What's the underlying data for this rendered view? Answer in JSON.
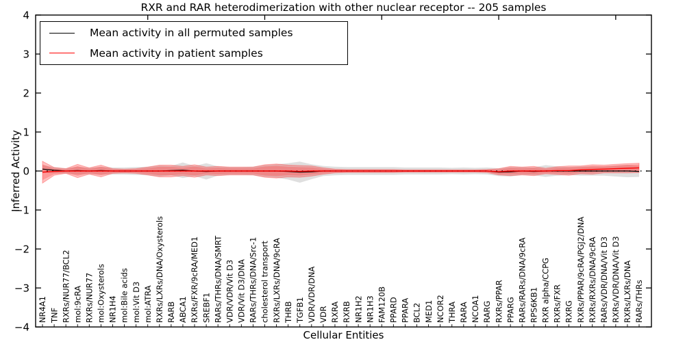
{
  "figure": {
    "title": "RXR and RAR heterodimerization with other nuclear receptor -- 205 samples",
    "xlabel": "Cellular Entities",
    "ylabel": "Inferred Activity"
  },
  "legend": {
    "items": [
      {
        "label": "Mean activity in all permuted samples",
        "color": "#000000"
      },
      {
        "label": "Mean activity in patient samples",
        "color": "#ff0000"
      }
    ]
  },
  "chart_data": {
    "type": "line",
    "title": "RXR and RAR heterodimerization with other nuclear receptor -- 205 samples",
    "xlabel": "Cellular Entities",
    "ylabel": "Inferred Activity",
    "ylim": [
      -4,
      4
    ],
    "ytick_labels": [
      "4",
      "3",
      "2",
      "1",
      "0",
      "−1",
      "−2",
      "−3",
      "−4"
    ],
    "ytick_values": [
      4,
      3,
      2,
      1,
      0,
      -1,
      -2,
      -3,
      -4
    ],
    "top_tick_indices": [
      9,
      19,
      29,
      39,
      49
    ],
    "grid": false,
    "legend_position": "upper left",
    "zero_line": true,
    "categories": [
      "NR4A1",
      "TNF",
      "RXRs/NUR77/BCL2",
      "mol:9cRA",
      "RXRs/NUR77",
      "mol:Oxysterols",
      "NR1H4",
      "mol:Bile acids",
      "mol:Vit D3",
      "mol:ATRA",
      "RXRs/LXRs/DNA/Oxysterols",
      "RARB",
      "ABCA1",
      "RXRs/FXR/9cRA/MED1",
      "SREBF1",
      "RARs/THRs/DNA/SMRT",
      "VDR/VDR/Vit D3",
      "VDR/Vit D3/DNA",
      "RARs/THRs/DNA/Src-1",
      "cholesterol transport",
      "RXRs/LXRs/DNA/9cRA",
      "THRB",
      "TGFB1",
      "VDR/VDR/DNA",
      "VDR",
      "RXRA",
      "RXRB",
      "NR1H2",
      "NR1H3",
      "FAM120B",
      "PPARD",
      "PPARA",
      "BCL2",
      "MED1",
      "NCOR2",
      "THRA",
      "RARA",
      "NCOA1",
      "RARG",
      "RXRs/PPAR",
      "PPARG",
      "RARs/RARs/DNA/9cRA",
      "RPS6KB1",
      "RXR alpha/CCPG",
      "RXRs/FXR",
      "RXRG",
      "RXRs/PPAR/9cRA/PGJ2/DNA",
      "RXRs/RXRs/DNA/9cRA",
      "RARs/VDR/DNA/Vit D3",
      "RXRs/VDR/DNA/Vit D3",
      "RXRs/LXRs/DNA",
      "RARs/THRs"
    ],
    "series": [
      {
        "name": "Mean activity in all permuted samples",
        "color": "#000000",
        "values": [
          0.05,
          0.02,
          0.0,
          0.01,
          0.0,
          0.01,
          0.0,
          0.0,
          0.0,
          0.0,
          0.0,
          0.01,
          0.02,
          0.0,
          -0.01,
          0.0,
          0.0,
          0.0,
          0.0,
          0.0,
          0.0,
          -0.01,
          -0.03,
          -0.02,
          0.0,
          0.0,
          0.0,
          0.0,
          0.0,
          0.0,
          0.0,
          0.0,
          0.0,
          0.0,
          0.0,
          0.0,
          0.0,
          0.0,
          0.0,
          -0.03,
          -0.02,
          0.0,
          -0.01,
          0.0,
          0.0,
          0.0,
          0.0,
          0.0,
          0.0,
          0.0,
          0.0,
          -0.01
        ],
        "std": [
          0.1,
          0.08,
          0.07,
          0.1,
          0.08,
          0.1,
          0.09,
          0.09,
          0.1,
          0.11,
          0.14,
          0.12,
          0.2,
          0.13,
          0.21,
          0.12,
          0.1,
          0.1,
          0.11,
          0.15,
          0.17,
          0.21,
          0.27,
          0.19,
          0.13,
          0.11,
          0.1,
          0.1,
          0.1,
          0.1,
          0.1,
          0.09,
          0.09,
          0.09,
          0.09,
          0.08,
          0.09,
          0.08,
          0.09,
          0.1,
          0.12,
          0.1,
          0.1,
          0.15,
          0.12,
          0.1,
          0.12,
          0.12,
          0.12,
          0.14,
          0.16,
          0.14
        ],
        "band_color": "#aaaaaa"
      },
      {
        "name": "Mean activity in patient samples",
        "color": "#ff0000",
        "values": [
          -0.03,
          -0.01,
          0.0,
          0.0,
          0.0,
          0.0,
          0.0,
          0.0,
          0.0,
          0.0,
          0.0,
          0.0,
          0.0,
          0.0,
          0.0,
          0.0,
          0.0,
          0.0,
          0.0,
          0.0,
          0.0,
          0.0,
          -0.01,
          0.0,
          0.0,
          0.0,
          0.0,
          0.0,
          0.0,
          0.0,
          0.0,
          0.0,
          0.0,
          0.0,
          0.0,
          0.0,
          0.0,
          0.0,
          0.0,
          -0.02,
          0.0,
          0.0,
          0.0,
          0.0,
          0.01,
          0.01,
          0.03,
          0.04,
          0.05,
          0.06,
          0.07,
          0.08
        ],
        "std": [
          0.28,
          0.1,
          0.06,
          0.17,
          0.08,
          0.15,
          0.06,
          0.05,
          0.06,
          0.1,
          0.15,
          0.15,
          0.12,
          0.16,
          0.1,
          0.12,
          0.1,
          0.1,
          0.1,
          0.16,
          0.18,
          0.15,
          0.15,
          0.13,
          0.08,
          0.05,
          0.04,
          0.04,
          0.04,
          0.04,
          0.04,
          0.03,
          0.03,
          0.03,
          0.03,
          0.03,
          0.03,
          0.03,
          0.04,
          0.08,
          0.12,
          0.1,
          0.12,
          0.07,
          0.1,
          0.12,
          0.1,
          0.12,
          0.1,
          0.11,
          0.12,
          0.12
        ],
        "band_color": "#ff2a2a"
      }
    ]
  }
}
